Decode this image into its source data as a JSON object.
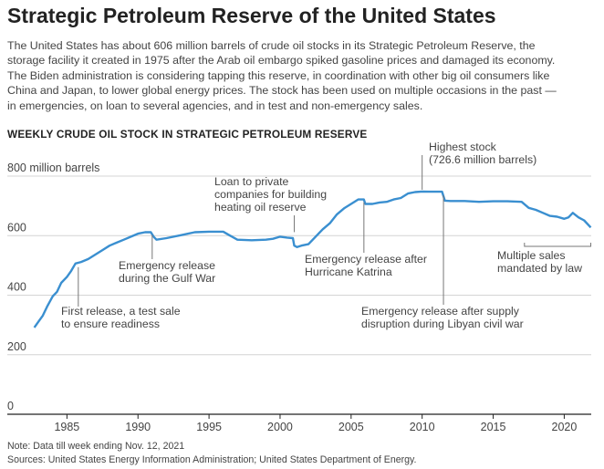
{
  "title": "Strategic Petroleum Reserve of the United States",
  "intro_lines": [
    "The United States has about 606 million barrels of crude oil stocks in its Strategic Petroleum Reserve, the",
    "storage facility it created in 1975 after the Arab oil embargo spiked gasoline prices and damaged its economy.",
    "The Biden administration is considering tapping this reserve, in coordination with other big oil consumers like",
    "China and Japan, to lower global energy prices. The stock has been used on multiple occasions in the past —",
    "in emergencies, on loan to several agencies, and in test and non-emergency sales."
  ],
  "note": "Note: Data till week ending Nov. 12, 2021",
  "sources": "Sources: United States Energy Information Administration; United States Department of Energy.",
  "chart_data": {
    "type": "line",
    "title": "WEEKLY CRUDE OIL STOCK IN STRATEGIC PETROLEUM RESERVE",
    "xlabel": "",
    "ylabel": "",
    "ylim": [
      0,
      800
    ],
    "xlim": [
      1982.6,
      2021.9
    ],
    "yticks": [
      {
        "value": 0,
        "label": "0"
      },
      {
        "value": 200,
        "label": "200"
      },
      {
        "value": 400,
        "label": "400"
      },
      {
        "value": 600,
        "label": "600"
      },
      {
        "value": 800,
        "label": "800 million barrels"
      }
    ],
    "xticks": [
      1985,
      1990,
      1995,
      2000,
      2005,
      2010,
      2015,
      2020
    ],
    "grid": "horizontal",
    "line_color": "#3a8fd0",
    "series": [
      {
        "x": [
          1982.7,
          1983.0,
          1983.3,
          1983.6,
          1984.0,
          1984.3,
          1984.6,
          1985.0,
          1985.3,
          1985.6,
          1986.0,
          1986.5,
          1987.0,
          1987.5,
          1988.0,
          1988.5,
          1989.0,
          1989.5,
          1990.0,
          1990.5,
          1990.9,
          1991.1,
          1991.3,
          1992.0,
          1993.0,
          1994.0,
          1995.0,
          1996.0,
          1996.5,
          1997.0,
          1998.0,
          1999.0,
          1999.5,
          2000.0,
          2000.5,
          2000.9,
          2001.0,
          2001.2,
          2001.5,
          2002.0,
          2002.5,
          2003.0,
          2003.5,
          2004.0,
          2004.5,
          2005.0,
          2005.5,
          2005.9,
          2006.0,
          2006.5,
          2007.0,
          2007.5,
          2008.0,
          2008.5,
          2009.0,
          2009.5,
          2010.0,
          2010.5,
          2011.0,
          2011.4,
          2011.6,
          2012.0,
          2013.0,
          2014.0,
          2015.0,
          2016.0,
          2017.0,
          2017.5,
          2018.0,
          2018.5,
          2019.0,
          2019.5,
          2020.0,
          2020.3,
          2020.6,
          2021.0,
          2021.4,
          2021.87
        ],
        "y": [
          270,
          290,
          310,
          340,
          375,
          390,
          420,
          440,
          460,
          485,
          490,
          500,
          515,
          530,
          545,
          555,
          565,
          575,
          585,
          590,
          590,
          575,
          565,
          570,
          580,
          590,
          592,
          592,
          578,
          565,
          563,
          565,
          568,
          575,
          572,
          570,
          545,
          540,
          545,
          550,
          575,
          600,
          620,
          650,
          670,
          685,
          700,
          700,
          685,
          685,
          690,
          692,
          700,
          705,
          720,
          725,
          726.6,
          726,
          726,
          726,
          696,
          695,
          695,
          692,
          694,
          694,
          692,
          672,
          665,
          655,
          645,
          642,
          635,
          640,
          655,
          640,
          630,
          606
        ]
      }
    ],
    "annotations": [
      {
        "text": [
          "Highest stock",
          "(726.6 million barrels)"
        ],
        "x": 2010.0,
        "y": 726.6
      },
      {
        "text": [
          "Loan to private",
          "companies for building",
          "heating oil reserve"
        ],
        "x": 2001.0,
        "y": 575
      },
      {
        "text": [
          "Emergency release",
          "during the Gulf War"
        ],
        "x": 1991.0,
        "y": 590
      },
      {
        "text": [
          "First release, a test sale",
          "to ensure readiness"
        ],
        "x": 1985.8,
        "y": 485
      },
      {
        "text": [
          "Emergency release after",
          "Hurricane Katrina"
        ],
        "x": 2005.9,
        "y": 700
      },
      {
        "text": [
          "Emergency release after supply",
          "disruption during Libyan civil war"
        ],
        "x": 2011.5,
        "y": 726
      },
      {
        "text": [
          "Multiple sales",
          "mandated by law"
        ],
        "x_range": [
          2017.2,
          2021.87
        ],
        "y": 690
      }
    ]
  }
}
